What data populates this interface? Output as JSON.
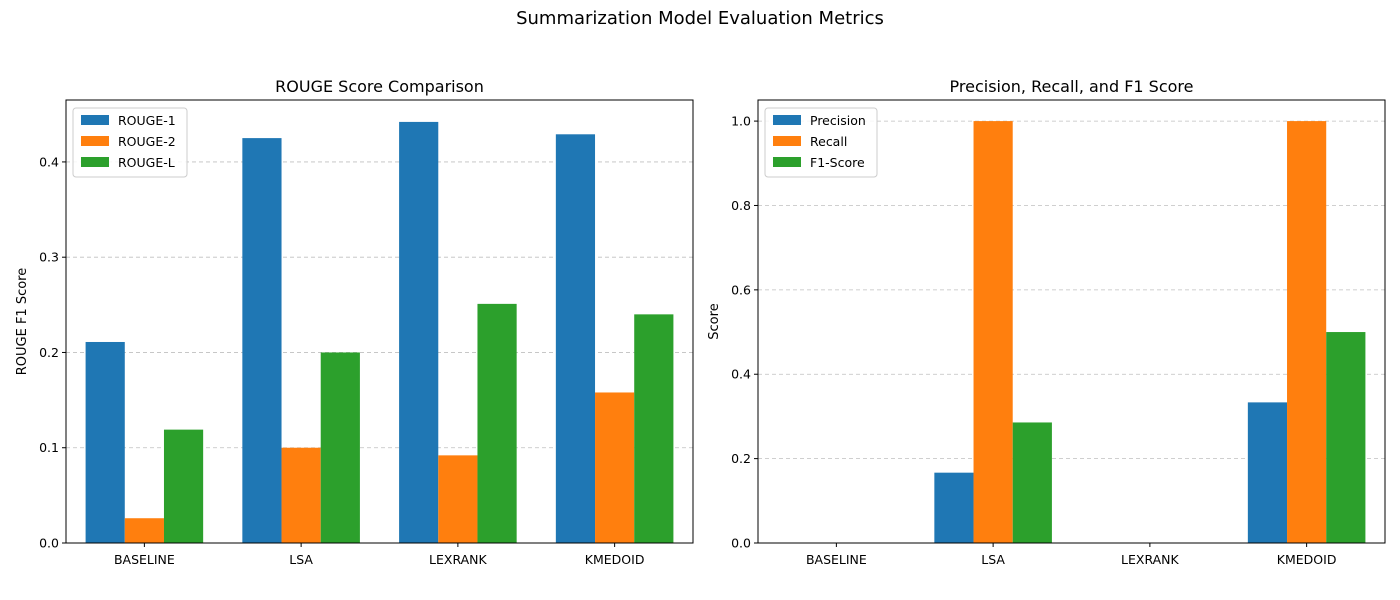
{
  "figure_title": "Summarization Model Evaluation Metrics",
  "chart_data": [
    {
      "type": "bar",
      "title": "ROUGE Score Comparison",
      "xlabel": "",
      "ylabel": "ROUGE F1 Score",
      "categories": [
        "BASELINE",
        "LSA",
        "LEXRANK",
        "KMEDOID"
      ],
      "series": [
        {
          "name": "ROUGE-1",
          "color": "#1f77b4",
          "values": [
            0.211,
            0.425,
            0.442,
            0.429
          ]
        },
        {
          "name": "ROUGE-2",
          "color": "#ff7f0e",
          "values": [
            0.026,
            0.1,
            0.092,
            0.158
          ]
        },
        {
          "name": "ROUGE-L",
          "color": "#2ca02c",
          "values": [
            0.119,
            0.2,
            0.251,
            0.24
          ]
        }
      ],
      "ylim": [
        0,
        0.465
      ],
      "yticks": [
        0.0,
        0.1,
        0.2,
        0.3,
        0.4
      ],
      "ytick_labels": [
        "0.0",
        "0.1",
        "0.2",
        "0.3",
        "0.4"
      ],
      "grid": "y-dashed",
      "legend": "upper-left"
    },
    {
      "type": "bar",
      "title": "Precision, Recall, and F1 Score",
      "xlabel": "",
      "ylabel": "Score",
      "categories": [
        "BASELINE",
        "LSA",
        "LEXRANK",
        "KMEDOID"
      ],
      "series": [
        {
          "name": "Precision",
          "color": "#1f77b4",
          "values": [
            0.0,
            0.1667,
            0.0,
            0.3333
          ]
        },
        {
          "name": "Recall",
          "color": "#ff7f0e",
          "values": [
            0.0,
            1.0,
            0.0,
            1.0
          ]
        },
        {
          "name": "F1-Score",
          "color": "#2ca02c",
          "values": [
            0.0,
            0.2857,
            0.0,
            0.5
          ]
        }
      ],
      "ylim": [
        0,
        1.05
      ],
      "yticks": [
        0.0,
        0.2,
        0.4,
        0.6,
        0.8,
        1.0
      ],
      "ytick_labels": [
        "0.0",
        "0.2",
        "0.4",
        "0.6",
        "0.8",
        "1.0"
      ],
      "grid": "y-dashed",
      "legend": "upper-left"
    }
  ]
}
